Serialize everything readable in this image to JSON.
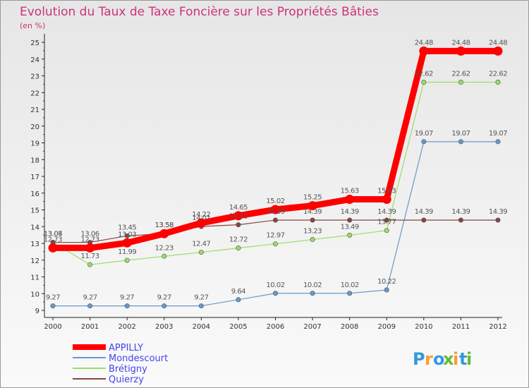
{
  "chart_data": {
    "type": "line",
    "title": "Evolution du Taux de Taxe Foncière sur les Propriétés Bâties",
    "unit_label": "(en %)",
    "x": [
      "2000",
      "2001",
      "2002",
      "2003",
      "2004",
      "2005",
      "2006",
      "2007",
      "2008",
      "2009",
      "2010",
      "2011",
      "2012"
    ],
    "ylim": [
      9,
      25
    ],
    "yticks": [
      "9",
      "10",
      "11",
      "12",
      "13",
      "14",
      "15",
      "16",
      "17",
      "18",
      "19",
      "20",
      "21",
      "22",
      "23",
      "24",
      "25"
    ],
    "grid": false,
    "legend_position": "bottom-left",
    "series": [
      {
        "name": "APPILLY",
        "color": "#ff0000",
        "line_width": 9,
        "values": [
          12.73,
          12.73,
          13.03,
          13.58,
          14.22,
          14.65,
          15.02,
          15.25,
          15.63,
          15.63,
          24.48,
          24.48,
          24.48
        ],
        "labels": [
          "12.73",
          "12.73",
          "13.03",
          "13.58",
          "14.22",
          "14.65",
          "15.02",
          "15.25",
          "15.63",
          "15.63",
          "24.48",
          "24.48",
          "24.48"
        ]
      },
      {
        "name": "Mondescourt",
        "color": "#6699cc",
        "line_width": 1.2,
        "values": [
          9.27,
          9.27,
          9.27,
          9.27,
          9.27,
          9.64,
          10.02,
          10.02,
          10.02,
          10.22,
          19.07,
          19.07,
          19.07
        ],
        "labels": [
          "9.27",
          "9.27",
          "9.27",
          "9.27",
          "9.27",
          "9.64",
          "10.02",
          "10.02",
          "10.02",
          "10.22",
          "19.07",
          "19.07",
          "19.07"
        ]
      },
      {
        "name": "Brétigny",
        "color": "#99dd66",
        "line_width": 1.2,
        "values": [
          13.07,
          11.73,
          11.99,
          12.23,
          12.47,
          12.72,
          12.97,
          13.23,
          13.49,
          13.77,
          22.62,
          22.62,
          22.62
        ],
        "labels": [
          "13.07",
          "11.73",
          "11.99",
          "12.23",
          "12.47",
          "12.72",
          "12.97",
          "13.23",
          "13.49",
          "13.77",
          "22.62",
          "22.62",
          "22.62"
        ]
      },
      {
        "name": "Quierzy",
        "color": "#884444",
        "line_width": 1.2,
        "values": [
          13.06,
          13.06,
          13.45,
          13.58,
          14.01,
          14.11,
          14.39,
          14.39,
          14.39,
          14.39,
          14.39,
          14.39,
          14.39
        ],
        "labels": [
          "13.06",
          "13.06",
          "13.45",
          "13.58",
          "14.01",
          "14.11",
          "14.39",
          "14.39",
          "14.39",
          "14.39",
          "14.39",
          "14.39",
          "14.39"
        ]
      }
    ]
  },
  "logo": {
    "text": "Proxiti"
  }
}
